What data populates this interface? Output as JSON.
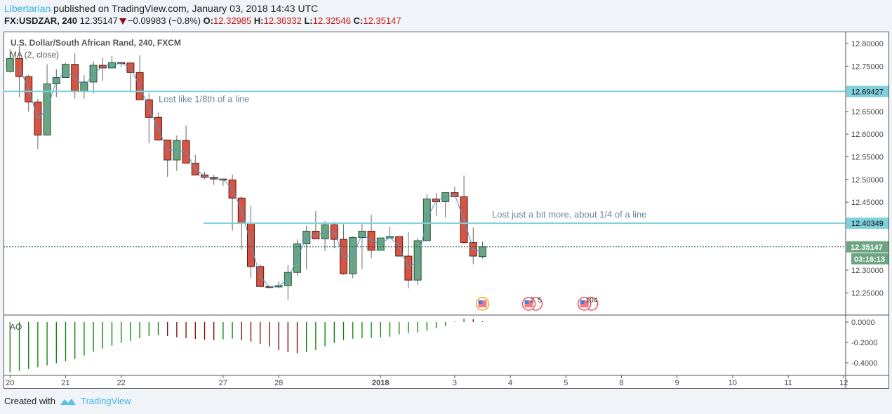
{
  "header": {
    "author": "Libertarian",
    "published_text": "published on TradingView.com, January 03, 2018 14:43 UTC",
    "symbol": "FX:USDZAR, 240",
    "last_price": "12.35147",
    "change": "−0.09983 (−0.8%)",
    "o_label": "O:",
    "o_value": "12.32985",
    "h_label": "H:",
    "h_value": "12.36332",
    "l_label": "L:",
    "l_value": "12.32546",
    "c_label": "C:",
    "c_value": "12.35147"
  },
  "legend": {
    "title": "U.S. Dollar/South African Rand, 240, FXCM",
    "ma_label": "MA (2, close)",
    "ao_label": "AO"
  },
  "footer": {
    "created_with": "Created with",
    "brand": "TradingView"
  },
  "colors": {
    "up": "#6ba583",
    "up_border": "#225437",
    "down": "#d75442",
    "down_border": "#5b1a13",
    "ma": "#4a9bd0",
    "hline": "#7fcfdc",
    "ao_up": "#008000",
    "ao_down": "#800000",
    "events": "#f04e5e",
    "event_selected": "#f5a623"
  },
  "chart_data": [
    {
      "type": "candlestick",
      "title": "U.S. Dollar/South African Rand, 240, FXCM",
      "ylim": [
        12.22,
        12.82
      ],
      "y_ticks": [
        "12.80000",
        "12.75000",
        "12.65000",
        "12.60000",
        "12.55000",
        "12.50000",
        "12.45000",
        "12.30000",
        "12.25000"
      ],
      "y_tick_values": [
        12.8,
        12.75,
        12.65,
        12.6,
        12.55,
        12.5,
        12.45,
        12.3,
        12.25
      ],
      "x_ticks": [
        {
          "label": "20",
          "bar": 1
        },
        {
          "label": "21",
          "bar": 7
        },
        {
          "label": "22",
          "bar": 13
        },
        {
          "label": "27",
          "bar": 24
        },
        {
          "label": "28",
          "bar": 30
        },
        {
          "label": "2018",
          "bar": 41
        },
        {
          "label": "3",
          "bar": 49
        },
        {
          "label": "4",
          "bar": 55
        },
        {
          "label": "5",
          "bar": 61
        },
        {
          "label": "8",
          "bar": 67
        },
        {
          "label": "9",
          "bar": 73
        },
        {
          "label": "10",
          "bar": 79
        },
        {
          "label": "11",
          "bar": 85
        },
        {
          "label": "12",
          "bar": 91
        }
      ],
      "ohlc": [
        [
          12.7385,
          12.7876,
          12.736,
          12.767
        ],
        [
          12.767,
          12.795,
          12.682,
          12.727
        ],
        [
          12.727,
          12.731,
          12.65,
          12.671
        ],
        [
          12.671,
          12.678,
          12.567,
          12.598
        ],
        [
          12.598,
          12.754,
          12.598,
          12.711
        ],
        [
          12.711,
          12.743,
          12.682,
          12.725
        ],
        [
          12.725,
          12.757,
          12.725,
          12.754
        ],
        [
          12.754,
          12.778,
          12.678,
          12.695
        ],
        [
          12.695,
          12.73,
          12.678,
          12.715
        ],
        [
          12.715,
          12.761,
          12.69,
          12.752
        ],
        [
          12.752,
          12.769,
          12.718,
          12.746
        ],
        [
          12.746,
          12.772,
          12.746,
          12.758
        ],
        [
          12.758,
          12.759,
          12.748,
          12.756
        ],
        [
          12.757,
          12.758,
          12.692,
          12.736
        ],
        [
          12.736,
          12.774,
          12.676,
          12.676
        ],
        [
          12.676,
          12.69,
          12.58,
          12.637
        ],
        [
          12.637,
          12.648,
          12.586,
          12.587
        ],
        [
          12.587,
          12.587,
          12.506,
          12.543
        ],
        [
          12.543,
          12.597,
          12.519,
          12.586
        ],
        [
          12.586,
          12.619,
          12.536,
          12.536
        ],
        [
          12.536,
          12.554,
          12.51,
          12.51
        ],
        [
          12.51,
          12.517,
          12.501,
          12.505
        ],
        [
          12.505,
          12.51,
          12.488,
          12.501
        ],
        [
          12.501,
          12.501,
          12.486,
          12.499
        ],
        [
          12.499,
          12.511,
          12.387,
          12.459
        ],
        [
          12.459,
          12.463,
          12.346,
          12.404
        ],
        [
          12.404,
          12.442,
          12.283,
          12.308
        ],
        [
          12.308,
          12.313,
          12.264,
          12.264
        ],
        [
          12.264,
          12.264,
          12.26,
          12.263
        ],
        [
          12.263,
          12.275,
          12.26,
          12.266
        ],
        [
          12.266,
          12.311,
          12.235,
          12.295
        ],
        [
          12.295,
          12.368,
          12.287,
          12.358
        ],
        [
          12.358,
          12.398,
          12.302,
          12.386
        ],
        [
          12.386,
          12.43,
          12.369,
          12.369
        ],
        [
          12.369,
          12.408,
          12.342,
          12.4
        ],
        [
          12.4,
          12.407,
          12.348,
          12.368
        ],
        [
          12.368,
          12.401,
          12.29,
          12.292
        ],
        [
          12.292,
          12.374,
          12.282,
          12.372
        ],
        [
          12.372,
          12.402,
          12.302,
          12.386
        ],
        [
          12.386,
          12.422,
          12.327,
          12.344
        ],
        [
          12.344,
          12.371,
          12.344,
          12.371
        ],
        [
          12.371,
          12.396,
          12.371,
          12.374
        ],
        [
          12.374,
          12.374,
          12.331,
          12.331
        ],
        [
          12.331,
          12.384,
          12.26,
          12.278
        ],
        [
          12.278,
          12.371,
          12.268,
          12.365
        ],
        [
          12.365,
          12.467,
          12.365,
          12.457
        ],
        [
          12.457,
          12.47,
          12.419,
          12.451
        ],
        [
          12.451,
          12.471,
          12.417,
          12.471
        ],
        [
          12.471,
          12.484,
          12.462,
          12.462
        ],
        [
          12.462,
          12.509,
          12.358,
          12.361
        ],
        [
          12.361,
          12.394,
          12.313,
          12.331
        ],
        [
          12.32985,
          12.36332,
          12.32546,
          12.35147
        ]
      ],
      "ma_period": 2,
      "horizontal_lines": [
        {
          "price": 12.69427,
          "label": "12.69427",
          "note": "Lost like 1/8th of a line",
          "start_bar": 1
        },
        {
          "price": 12.40349,
          "label": "12.40349",
          "note": "Lost just a bit more, about 1/4 of a line",
          "start_bar": 22
        }
      ],
      "last_price": {
        "price": 12.35147,
        "label": "12.35147",
        "countdown": "03:16:13"
      },
      "events": [
        {
          "bar": 52,
          "text_a": "",
          "text_b": "",
          "selected": true
        },
        {
          "bar": 57,
          "text_a": "2",
          "text_b": "5",
          "selected": false
        },
        {
          "bar": 63,
          "text_a": "10",
          "text_b": "4",
          "selected": false
        }
      ]
    },
    {
      "type": "bar",
      "title": "AO",
      "ylim": [
        -0.52,
        0.02
      ],
      "y_ticks": [
        "0.0000",
        "-0.2000",
        "-0.4000"
      ],
      "y_tick_values": [
        0,
        -0.2,
        -0.4
      ],
      "values": [
        -0.494,
        -0.478,
        -0.46,
        -0.444,
        -0.426,
        -0.405,
        -0.384,
        -0.363,
        -0.329,
        -0.29,
        -0.26,
        -0.232,
        -0.205,
        -0.184,
        -0.159,
        -0.136,
        -0.129,
        -0.138,
        -0.15,
        -0.159,
        -0.166,
        -0.173,
        -0.179,
        -0.17,
        -0.163,
        -0.179,
        -0.191,
        -0.214,
        -0.239,
        -0.276,
        -0.294,
        -0.304,
        -0.294,
        -0.274,
        -0.239,
        -0.205,
        -0.177,
        -0.163,
        -0.159,
        -0.156,
        -0.15,
        -0.143,
        -0.122,
        -0.106,
        -0.101,
        -0.083,
        -0.06,
        -0.035,
        0.005,
        0.035,
        0.028,
        0.007
      ]
    }
  ]
}
